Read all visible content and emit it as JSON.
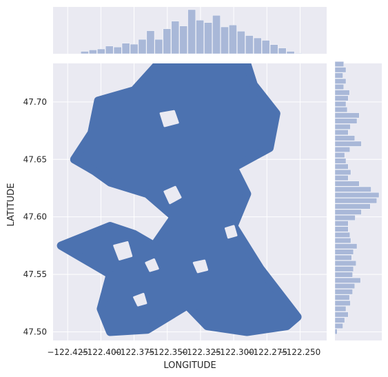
{
  "chart_data": {
    "type": "scatter",
    "title": "",
    "xlabel": "LONGITUDE",
    "ylabel": "LATITUDE",
    "xlim": [
      -122.436,
      -122.23
    ],
    "ylim": [
      47.4925,
      47.7335
    ],
    "x_ticks": [
      -122.425,
      -122.4,
      -122.375,
      -122.35,
      -122.325,
      -122.3,
      -122.275,
      -122.25
    ],
    "x_tick_labels": [
      "−122.425",
      "−122.400",
      "−122.375",
      "−122.350",
      "−122.325",
      "−122.300",
      "−122.275",
      "−122.250"
    ],
    "y_ticks": [
      47.5,
      47.55,
      47.6,
      47.65,
      47.7
    ],
    "y_tick_labels": [
      "47.50",
      "47.55",
      "47.60",
      "47.65",
      "47.70"
    ],
    "grid": true,
    "point_color": "#4c72b0",
    "hist_color": "#a9b8d8",
    "background_color": "#eaeaf2",
    "scatter_regions": [
      [
        [
          -122.42,
          47.65
        ],
        [
          -122.407,
          47.673
        ],
        [
          -122.402,
          47.701
        ],
        [
          -122.375,
          47.71
        ],
        [
          -122.357,
          47.733
        ],
        [
          -122.29,
          47.733
        ],
        [
          -122.285,
          47.715
        ],
        [
          -122.268,
          47.69
        ],
        [
          -122.273,
          47.66
        ],
        [
          -122.3,
          47.643
        ],
        [
          -122.29,
          47.62
        ],
        [
          -122.3,
          47.592
        ],
        [
          -122.28,
          47.555
        ],
        [
          -122.252,
          47.513
        ],
        [
          -122.26,
          47.505
        ],
        [
          -122.29,
          47.5
        ],
        [
          -122.32,
          47.505
        ],
        [
          -122.335,
          47.523
        ],
        [
          -122.365,
          47.502
        ],
        [
          -122.393,
          47.5
        ],
        [
          -122.4,
          47.52
        ],
        [
          -122.393,
          47.55
        ],
        [
          -122.43,
          47.575
        ],
        [
          -122.393,
          47.592
        ],
        [
          -122.375,
          47.585
        ],
        [
          -122.36,
          47.575
        ],
        [
          -122.345,
          47.6
        ],
        [
          -122.365,
          47.62
        ],
        [
          -122.393,
          47.63
        ],
        [
          -122.405,
          47.64
        ]
      ]
    ],
    "scatter_holes": [
      [
        [
          -122.355,
          47.69
        ],
        [
          -122.345,
          47.692
        ],
        [
          -122.342,
          47.682
        ],
        [
          -122.352,
          47.679
        ]
      ],
      [
        [
          -122.352,
          47.622
        ],
        [
          -122.344,
          47.626
        ],
        [
          -122.34,
          47.617
        ],
        [
          -122.348,
          47.612
        ]
      ],
      [
        [
          -122.39,
          47.575
        ],
        [
          -122.38,
          47.578
        ],
        [
          -122.377,
          47.566
        ],
        [
          -122.386,
          47.563
        ]
      ],
      [
        [
          -122.366,
          47.56
        ],
        [
          -122.36,
          47.563
        ],
        [
          -122.357,
          47.555
        ],
        [
          -122.363,
          47.553
        ]
      ],
      [
        [
          -122.33,
          47.56
        ],
        [
          -122.322,
          47.562
        ],
        [
          -122.32,
          47.554
        ],
        [
          -122.327,
          47.552
        ]
      ],
      [
        [
          -122.375,
          47.53
        ],
        [
          -122.368,
          47.533
        ],
        [
          -122.366,
          47.525
        ],
        [
          -122.372,
          47.523
        ]
      ],
      [
        [
          -122.306,
          47.59
        ],
        [
          -122.3,
          47.592
        ],
        [
          -122.298,
          47.584
        ],
        [
          -122.304,
          47.582
        ]
      ]
    ],
    "x_hist": {
      "bin_width": 0.0062,
      "bin_starts": [
        -122.4275,
        -122.4213,
        -122.4151,
        -122.4089,
        -122.4027,
        -122.3965,
        -122.3903,
        -122.3841,
        -122.3779,
        -122.3717,
        -122.3655,
        -122.3593,
        -122.3531,
        -122.3469,
        -122.3407,
        -122.3345,
        -122.3283,
        -122.3221,
        -122.3159,
        -122.3097,
        -122.3035,
        -122.2973,
        -122.2911,
        -122.2849,
        -122.2787,
        -122.2725,
        -122.2663,
        -122.2601,
        -122.2539,
        -122.2477
      ],
      "counts": [
        0,
        0,
        0.05,
        0.08,
        0.1,
        0.16,
        0.14,
        0.22,
        0.2,
        0.3,
        0.48,
        0.3,
        0.52,
        0.68,
        0.58,
        0.92,
        0.7,
        0.65,
        0.8,
        0.56,
        0.6,
        0.47,
        0.38,
        0.33,
        0.28,
        0.19,
        0.12,
        0.05,
        0.01,
        0
      ]
    },
    "y_hist": {
      "bin_width": 0.00495,
      "bin_starts": [
        47.4975,
        47.50245,
        47.5074,
        47.51235,
        47.5173,
        47.52225,
        47.5272,
        47.53215,
        47.5371,
        47.54205,
        47.547,
        47.55195,
        47.5569,
        47.56185,
        47.5668,
        47.57175,
        47.5767,
        47.58165,
        47.5866,
        47.59155,
        47.5965,
        47.60145,
        47.6064,
        47.61135,
        47.6163,
        47.62125,
        47.6262,
        47.63115,
        47.6361,
        47.64105,
        47.646,
        47.65095,
        47.6559,
        47.66085,
        47.6658,
        47.67075,
        47.6757,
        47.68065,
        47.6856,
        47.69055,
        47.6955,
        47.70045,
        47.7054,
        47.71035,
        47.7153,
        47.72025,
        47.7252,
        47.73015
      ],
      "counts": [
        0.05,
        0.18,
        0.22,
        0.3,
        0.25,
        0.35,
        0.33,
        0.4,
        0.45,
        0.58,
        0.4,
        0.42,
        0.48,
        0.38,
        0.42,
        0.5,
        0.36,
        0.34,
        0.3,
        0.3,
        0.46,
        0.6,
        0.8,
        0.95,
        1.0,
        0.82,
        0.55,
        0.3,
        0.36,
        0.3,
        0.25,
        0.22,
        0.34,
        0.6,
        0.45,
        0.3,
        0.35,
        0.5,
        0.55,
        0.28,
        0.25,
        0.3,
        0.33,
        0.2,
        0.25,
        0.18,
        0.25,
        0.2
      ]
    }
  }
}
